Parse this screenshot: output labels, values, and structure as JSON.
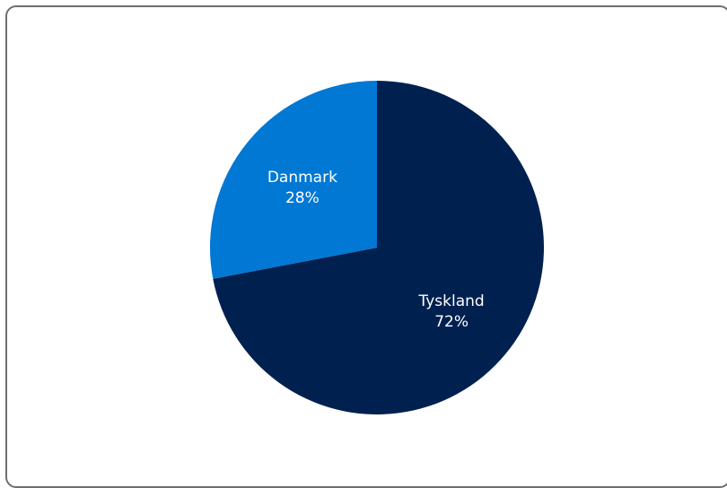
{
  "chart_data": {
    "type": "pie",
    "title": "",
    "slices": [
      {
        "label": "Tyskland",
        "value": 72,
        "value_label": "72%",
        "color": "#002050"
      },
      {
        "label": "Danmark",
        "value": 28,
        "value_label": "28%",
        "color": "#0078d4"
      }
    ],
    "start": "12 o'clock",
    "direction": "clockwise",
    "legend": "none",
    "labels": "inside"
  }
}
